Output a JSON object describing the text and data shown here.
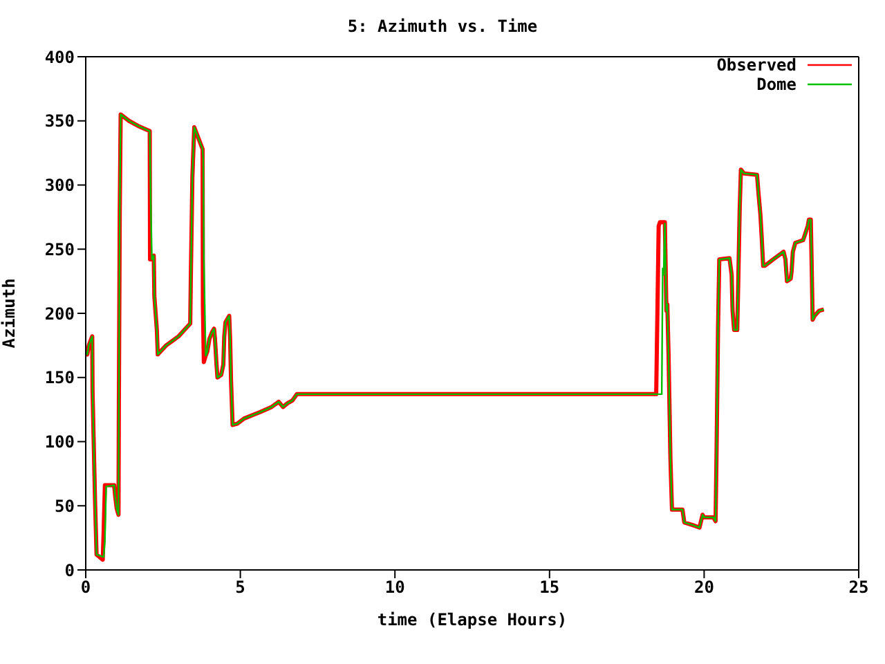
{
  "chart_data": {
    "type": "line",
    "title": "5: Azimuth vs. Time",
    "xlabel": "time (Elapse Hours)",
    "ylabel": "Azimuth",
    "xlim": [
      0,
      25
    ],
    "xticks": [
      0,
      5,
      10,
      15,
      20,
      25
    ],
    "ylim": [
      0,
      400
    ],
    "yticks": [
      0,
      50,
      100,
      150,
      200,
      250,
      300,
      350,
      400
    ],
    "grid": false,
    "legend": "top right",
    "series": [
      {
        "name": "Observed",
        "color": "#ff0000",
        "x": [
          0,
          0.05,
          0.1,
          0.21,
          0.22,
          0.3,
          0.35,
          0.55,
          0.58,
          0.62,
          0.92,
          0.95,
          1.0,
          1.06,
          1.07,
          1.1,
          1.13,
          1.4,
          1.7,
          2.07,
          2.08,
          2.14,
          2.2,
          2.22,
          2.3,
          2.33,
          2.6,
          3.0,
          3.38,
          3.4,
          3.45,
          3.51,
          3.78,
          3.79,
          3.82,
          3.88,
          3.93,
          4.0,
          4.08,
          4.15,
          4.18,
          4.23,
          4.26,
          4.38,
          4.45,
          4.48,
          4.52,
          4.64,
          4.67,
          4.7,
          4.75,
          4.9,
          5.12,
          5.64,
          6.01,
          6.24,
          6.38,
          6.53,
          6.68,
          6.83,
          18.45,
          18.47,
          18.51,
          18.53,
          18.57,
          18.73,
          18.76,
          18.78,
          18.81,
          18.85,
          18.91,
          18.96,
          19.3,
          19.36,
          19.63,
          19.85,
          19.95,
          20.0,
          20.3,
          20.37,
          20.4,
          20.45,
          20.49,
          20.82,
          20.89,
          20.92,
          20.97,
          21.07,
          21.1,
          21.15,
          21.19,
          21.29,
          21.71,
          21.76,
          21.82,
          21.86,
          21.91,
          21.96,
          22.23,
          22.57,
          22.63,
          22.68,
          22.8,
          22.83,
          22.87,
          22.95,
          23.2,
          23.27,
          23.35,
          23.39,
          23.45,
          23.48,
          23.51,
          23.57,
          23.72,
          23.87
        ],
        "values": [
          170,
          168,
          175,
          182,
          140,
          55,
          12,
          8,
          30,
          66,
          66,
          58,
          48,
          43,
          122,
          278,
          355,
          350,
          346,
          342,
          242,
          242,
          245,
          213,
          187,
          168,
          175,
          182,
          192,
          230,
          307,
          345,
          328,
          205,
          162,
          167,
          170,
          180,
          185,
          188,
          180,
          160,
          150,
          152,
          160,
          182,
          193,
          198,
          180,
          147,
          113,
          114,
          118,
          123,
          127,
          131,
          127,
          130,
          132,
          137,
          137,
          170,
          235,
          268,
          271,
          271,
          230,
          202,
          207,
          167,
          87,
          47,
          47,
          37,
          35,
          33,
          43,
          41,
          41,
          38,
          88,
          188,
          242,
          243,
          230,
          202,
          187,
          187,
          220,
          281,
          312,
          309,
          308,
          293,
          277,
          260,
          237,
          237,
          242,
          248,
          242,
          225,
          227,
          233,
          248,
          255,
          257,
          262,
          268,
          273,
          273,
          235,
          195,
          198,
          202,
          203
        ]
      },
      {
        "name": "Dome",
        "color": "#00c000",
        "x": [
          0,
          0.05,
          0.1,
          0.21,
          0.22,
          0.3,
          0.35,
          0.58,
          0.62,
          0.66,
          0.92,
          0.95,
          1.0,
          1.06,
          1.07,
          1.1,
          1.13,
          1.4,
          1.7,
          2.07,
          2.1,
          2.14,
          2.2,
          2.22,
          2.3,
          2.33,
          2.6,
          3.0,
          3.38,
          3.4,
          3.45,
          3.51,
          3.78,
          3.8,
          3.82,
          3.88,
          3.93,
          4.0,
          4.08,
          4.15,
          4.18,
          4.23,
          4.26,
          4.38,
          4.45,
          4.48,
          4.52,
          4.64,
          4.67,
          4.7,
          4.75,
          4.9,
          5.12,
          5.64,
          6.01,
          6.24,
          6.38,
          6.53,
          6.68,
          6.83,
          18.63,
          18.66,
          18.69,
          18.73,
          18.76,
          18.78,
          18.81,
          18.85,
          18.91,
          18.96,
          19.3,
          19.36,
          19.63,
          19.85,
          19.95,
          20.0,
          20.3,
          20.37,
          20.4,
          20.45,
          20.49,
          20.82,
          20.89,
          20.92,
          20.97,
          21.07,
          21.1,
          21.15,
          21.19,
          21.29,
          21.71,
          21.76,
          21.82,
          21.86,
          21.91,
          21.96,
          22.23,
          22.57,
          22.63,
          22.68,
          22.8,
          22.83,
          22.87,
          22.95,
          23.2,
          23.27,
          23.35,
          23.39,
          23.45,
          23.48,
          23.51,
          23.57,
          23.72,
          23.87
        ],
        "values": [
          170,
          168,
          175,
          182,
          140,
          55,
          12,
          10,
          23,
          65,
          66,
          58,
          48,
          43,
          122,
          278,
          355,
          350,
          346,
          342,
          290,
          242,
          245,
          213,
          187,
          168,
          175,
          182,
          192,
          230,
          307,
          345,
          328,
          320,
          243,
          167,
          170,
          180,
          185,
          188,
          180,
          160,
          150,
          152,
          160,
          182,
          193,
          198,
          180,
          147,
          113,
          114,
          118,
          123,
          127,
          131,
          127,
          130,
          132,
          137,
          137,
          235,
          230,
          270,
          230,
          202,
          207,
          167,
          87,
          47,
          47,
          37,
          35,
          33,
          43,
          41,
          41,
          38,
          88,
          188,
          242,
          243,
          230,
          202,
          187,
          187,
          220,
          281,
          312,
          309,
          308,
          293,
          277,
          260,
          237,
          237,
          242,
          248,
          242,
          225,
          227,
          233,
          248,
          255,
          257,
          262,
          268,
          273,
          273,
          235,
          195,
          198,
          202,
          203
        ]
      }
    ]
  }
}
